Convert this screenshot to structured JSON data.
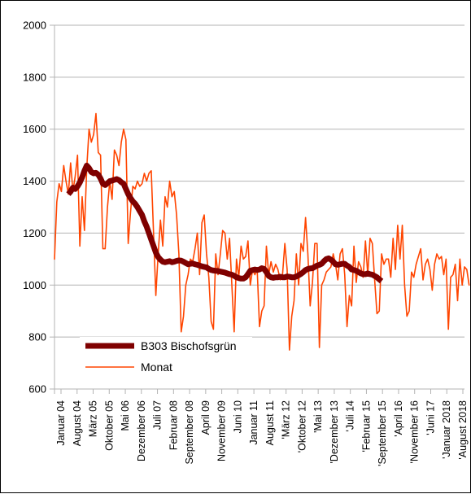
{
  "chart_data": {
    "type": "line",
    "title": "",
    "xlabel": "",
    "ylabel": "",
    "ylim": [
      600,
      2000
    ],
    "yticks": [
      600,
      800,
      1000,
      1200,
      1400,
      1600,
      1800,
      2000
    ],
    "grid": "horizontal",
    "legend_position": "bottom-left",
    "start_month": "Januar 04",
    "x_tick_labels": [
      "Januar 04",
      "August 04",
      "März 05",
      "Oktober 05",
      "Mai 06",
      "Dezember 06",
      "Juli 07",
      "Februar 08",
      "September 08",
      "April 09",
      "November 09",
      "Juni 10",
      "Januar 11",
      "August 11",
      "'März 12",
      "'Oktober 12",
      "'Mai 13",
      "'Dezember 13",
      "'Juli 14",
      "'Februar 15",
      "'September 15",
      "'April 16",
      "'November 16",
      "'Juni 17",
      "'Januar 2018",
      "'August 2018"
    ],
    "series": [
      {
        "name": "B303 Bischofsgrün",
        "color": "#7f0000",
        "style": "thick",
        "start_index": 6,
        "values": [
          1350,
          1360,
          1375,
          1370,
          1380,
          1395,
          1415,
          1440,
          1460,
          1450,
          1435,
          1430,
          1432,
          1425,
          1410,
          1390,
          1385,
          1392,
          1400,
          1402,
          1405,
          1408,
          1404,
          1396,
          1390,
          1370,
          1350,
          1335,
          1322,
          1313,
          1300,
          1285,
          1270,
          1245,
          1225,
          1200,
          1175,
          1150,
          1125,
          1108,
          1098,
          1090,
          1088,
          1090,
          1092,
          1088,
          1090,
          1093,
          1095,
          1094,
          1090,
          1085,
          1080,
          1082,
          1083,
          1080,
          1078,
          1075,
          1072,
          1070,
          1068,
          1062,
          1058,
          1056,
          1055,
          1054,
          1052,
          1050,
          1048,
          1045,
          1042,
          1040,
          1036,
          1030,
          1027,
          1025,
          1025,
          1030,
          1042,
          1055,
          1058,
          1060,
          1058,
          1060,
          1065,
          1062,
          1050,
          1035,
          1030,
          1028,
          1030,
          1030,
          1032,
          1030,
          1030,
          1033,
          1032,
          1030,
          1030,
          1033,
          1038,
          1043,
          1050,
          1058,
          1062,
          1064,
          1065,
          1070,
          1075,
          1078,
          1082,
          1092,
          1100,
          1103,
          1098,
          1090,
          1080,
          1078,
          1080,
          1082,
          1082,
          1075,
          1070,
          1060,
          1058,
          1055,
          1050,
          1045,
          1042,
          1042,
          1045,
          1042,
          1040,
          1035,
          1030,
          1022,
          1015
        ]
      },
      {
        "name": "Monat",
        "color": "#ff4500",
        "style": "thin",
        "start_index": 0,
        "values": [
          1100,
          1320,
          1390,
          1360,
          1460,
          1400,
          1350,
          1470,
          1360,
          1420,
          1500,
          1150,
          1340,
          1210,
          1450,
          1600,
          1550,
          1580,
          1660,
          1510,
          1500,
          1140,
          1140,
          1300,
          1400,
          1330,
          1520,
          1500,
          1460,
          1550,
          1600,
          1560,
          1160,
          1280,
          1380,
          1370,
          1400,
          1380,
          1390,
          1430,
          1400,
          1430,
          1440,
          1200,
          960,
          1120,
          1250,
          1150,
          1340,
          1300,
          1400,
          1340,
          1360,
          1270,
          1120,
          820,
          880,
          1000,
          1040,
          1100,
          1090,
          1140,
          1200,
          1040,
          1240,
          1270,
          1120,
          1030,
          860,
          830,
          1120,
          1040,
          1120,
          1210,
          1200,
          1100,
          1180,
          1000,
          820,
          1100,
          1030,
          1150,
          1100,
          1110,
          1170,
          1000,
          1060,
          1040,
          1060,
          840,
          900,
          920,
          1150,
          1040,
          1090,
          1050,
          1080,
          1060,
          1020,
          1040,
          1160,
          1060,
          750,
          880,
          940,
          1120,
          1000,
          1160,
          1130,
          1260,
          1120,
          920,
          1010,
          1160,
          1160,
          760,
          1000,
          1020,
          1050,
          1060,
          1070,
          1120,
          1080,
          1020,
          1120,
          1140,
          1040,
          840,
          960,
          920,
          1150,
          1010,
          1090,
          1070,
          1030,
          1170,
          1040,
          1180,
          1160,
          1020,
          890,
          900,
          1120,
          1080,
          1100,
          1100,
          1030,
          1180,
          1060,
          1230,
          1100,
          1230,
          1000,
          880,
          900,
          1050,
          1030,
          1080,
          1110,
          1140,
          1020,
          1080,
          1100,
          1060,
          980,
          1080,
          1120,
          1100,
          1110,
          1040,
          1100,
          830,
          1030,
          1040,
          1080,
          940,
          1100,
          1000,
          1070,
          1060,
          1000
        ]
      }
    ]
  }
}
